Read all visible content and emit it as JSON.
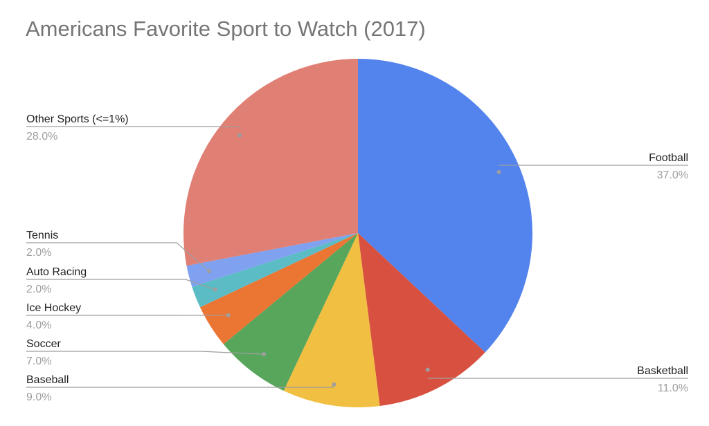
{
  "chart_data": {
    "type": "pie",
    "title": "Americans Favorite Sport to Watch (2017)",
    "slices": [
      {
        "label": "Football",
        "value": 37.0,
        "pct_label": "37.0%",
        "color": "#5383EC"
      },
      {
        "label": "Basketball",
        "value": 11.0,
        "pct_label": "11.0%",
        "color": "#D85140"
      },
      {
        "label": "Baseball",
        "value": 9.0,
        "pct_label": "9.0%",
        "color": "#F1BF42"
      },
      {
        "label": "Soccer",
        "value": 7.0,
        "pct_label": "7.0%",
        "color": "#58A55C"
      },
      {
        "label": "Ice Hockey",
        "value": 4.0,
        "pct_label": "4.0%",
        "color": "#EB7533"
      },
      {
        "label": "Auto Racing",
        "value": 2.0,
        "pct_label": "2.0%",
        "color": "#5BBCC6"
      },
      {
        "label": "Tennis",
        "value": 2.0,
        "pct_label": "2.0%",
        "color": "#7FA1F0"
      },
      {
        "label": "Other Sports (<=1%)",
        "value": 28.0,
        "pct_label": "28.0%",
        "color": "#E07F73"
      }
    ],
    "legend": "none",
    "label_placement": "outside-with-leader-lines"
  }
}
